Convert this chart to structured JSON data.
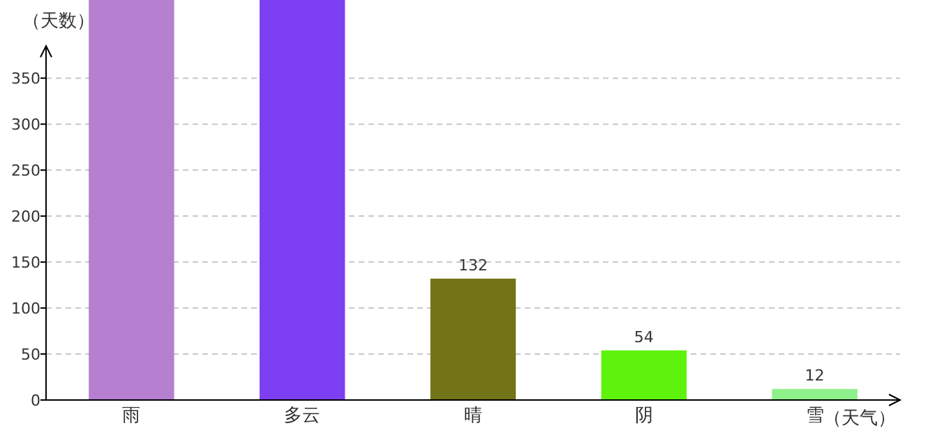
{
  "chart_data": {
    "type": "bar",
    "xlabel": "（天气）",
    "ylabel": "（天数）",
    "categories": [
      "雨",
      "多云",
      "晴",
      "阴",
      "雪"
    ],
    "values": [
      435,
      435,
      132,
      54,
      12
    ],
    "colors": [
      "#b77fd0",
      "#7c3ff2",
      "#737318",
      "#5ff20d",
      "#8ef08a"
    ],
    "value_labels": [
      null,
      null,
      "132",
      "54",
      "12"
    ],
    "ylim": [
      0,
      435
    ],
    "yticks": [
      0,
      50,
      100,
      150,
      200,
      250,
      300,
      350
    ],
    "grid": "y"
  }
}
